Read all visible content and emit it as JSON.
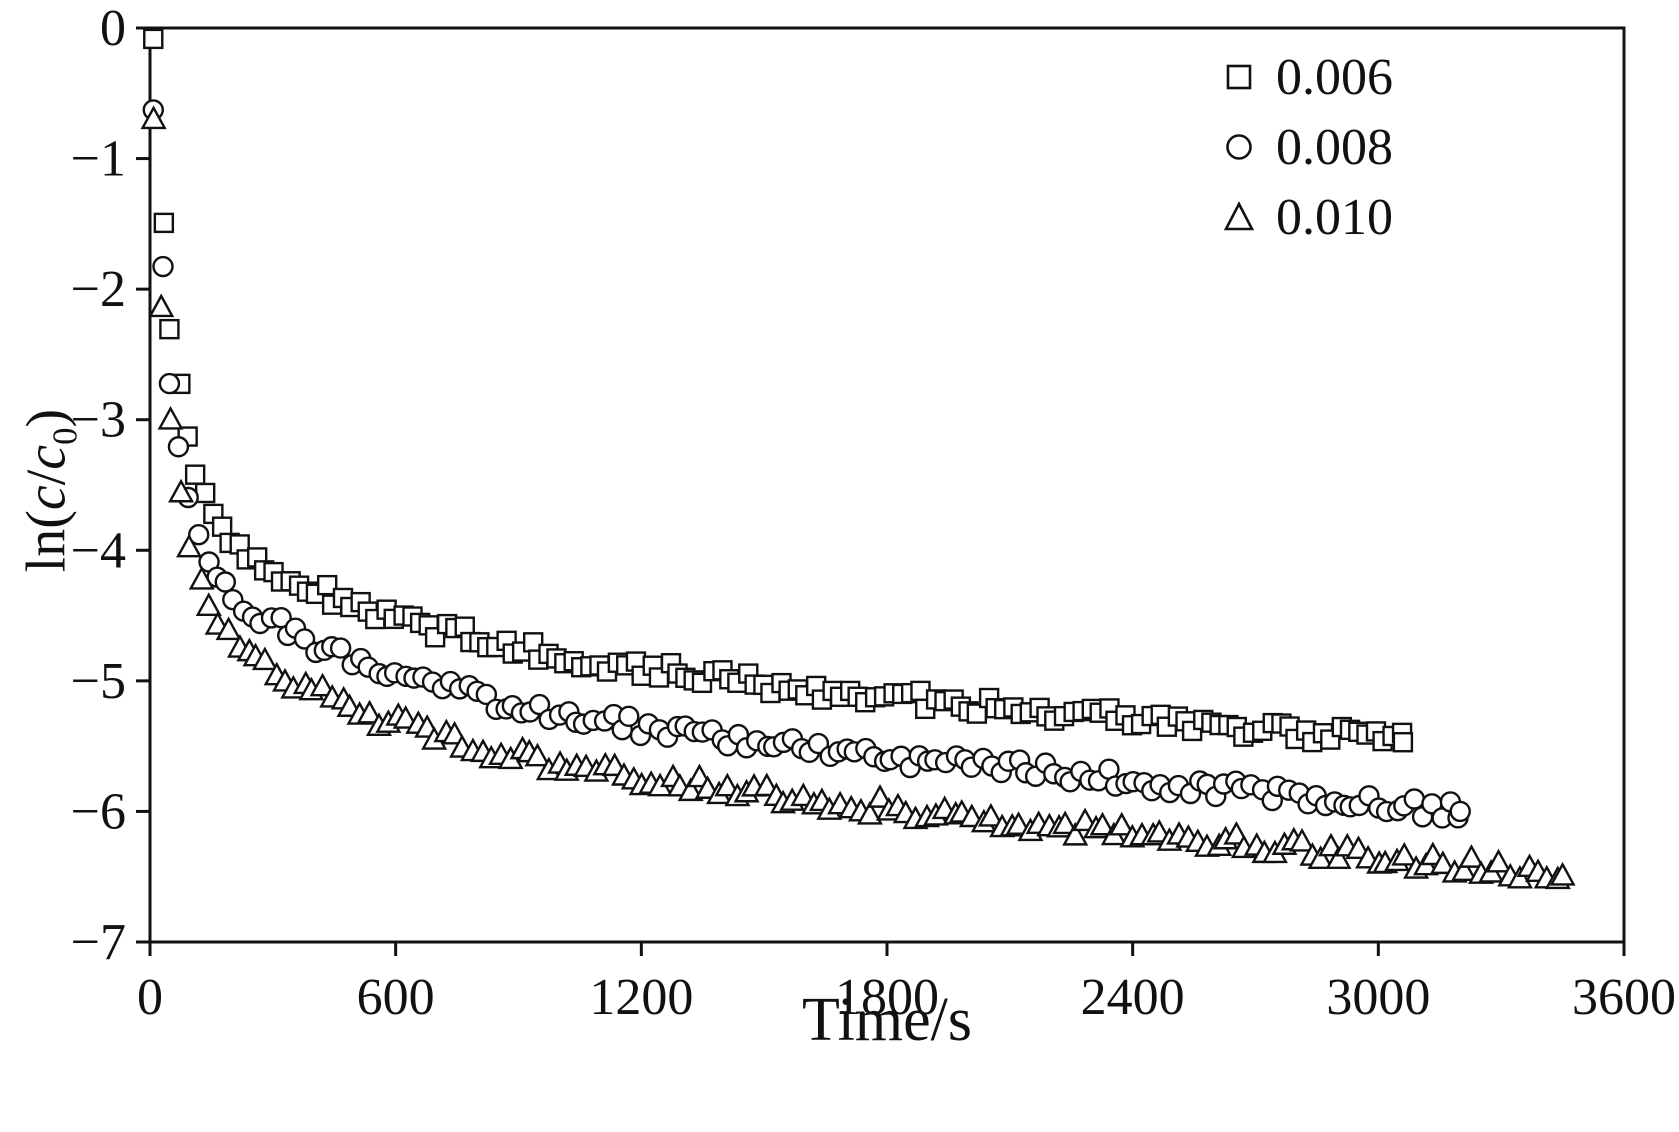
{
  "figure": {
    "description": "Scatter plot of ln(c/c0) versus time for three concentrations"
  },
  "axis": {
    "xlabel": "Time/s",
    "ylabel": "ln(c/c0)",
    "ylabel_parts": {
      "open": "ln(",
      "c1": "c",
      "slash": "/",
      "c2": "c",
      "sub": "0",
      "close": ")"
    }
  },
  "legend": {
    "items": [
      {
        "marker": "square",
        "label": "0.006"
      },
      {
        "marker": "circle",
        "label": "0.008"
      },
      {
        "marker": "triangle",
        "label": "0.010"
      }
    ]
  },
  "chart_data": {
    "type": "scatter",
    "title": "",
    "xlabel": "Time/s",
    "ylabel": "ln(c/c0)",
    "xlim": [
      0,
      3600
    ],
    "ylim": [
      -7,
      0
    ],
    "xticks": [
      0,
      600,
      1200,
      1800,
      2400,
      3000,
      3600
    ],
    "xtick_labels": [
      "0",
      "600",
      "1200",
      "1800",
      "2400",
      "3000",
      "3600"
    ],
    "yticks": [
      0,
      -1,
      -2,
      -3,
      -4,
      -5,
      -6,
      -7
    ],
    "ytick_labels": [
      "0",
      "−1",
      "−2",
      "−3",
      "−4",
      "−5",
      "−6",
      "−7"
    ],
    "grid": false,
    "legend_position": "top-right",
    "marker_style": "hollow",
    "color": "#111111",
    "series": [
      {
        "name": "0.006",
        "marker": "square",
        "marker_step": 21,
        "points": [
          [
            8,
            -0.05
          ],
          [
            12,
            -0.3
          ],
          [
            16,
            -0.7
          ],
          [
            20,
            -1.15
          ],
          [
            25,
            -1.4
          ],
          [
            30,
            -1.6
          ],
          [
            40,
            -1.95
          ],
          [
            50,
            -2.27
          ],
          [
            60,
            -2.53
          ],
          [
            70,
            -2.75
          ],
          [
            80,
            -2.94
          ],
          [
            90,
            -3.1
          ],
          [
            100,
            -3.24
          ],
          [
            120,
            -3.46
          ],
          [
            140,
            -3.62
          ],
          [
            160,
            -3.75
          ],
          [
            180,
            -3.84
          ],
          [
            200,
            -3.92
          ],
          [
            250,
            -4.06
          ],
          [
            300,
            -4.16
          ],
          [
            350,
            -4.24
          ],
          [
            400,
            -4.3
          ],
          [
            450,
            -4.36
          ],
          [
            500,
            -4.42
          ],
          [
            550,
            -4.47
          ],
          [
            600,
            -4.52
          ],
          [
            700,
            -4.6
          ],
          [
            800,
            -4.68
          ],
          [
            900,
            -4.74
          ],
          [
            1000,
            -4.8
          ],
          [
            1100,
            -4.85
          ],
          [
            1200,
            -4.9
          ],
          [
            1300,
            -4.94
          ],
          [
            1400,
            -4.98
          ],
          [
            1500,
            -5.02
          ],
          [
            1600,
            -5.06
          ],
          [
            1700,
            -5.09
          ],
          [
            1800,
            -5.12
          ],
          [
            1900,
            -5.15
          ],
          [
            2000,
            -5.18
          ],
          [
            2100,
            -5.21
          ],
          [
            2200,
            -5.24
          ],
          [
            2300,
            -5.26
          ],
          [
            2400,
            -5.29
          ],
          [
            2500,
            -5.32
          ],
          [
            2600,
            -5.34
          ],
          [
            2700,
            -5.37
          ],
          [
            2800,
            -5.4
          ],
          [
            2900,
            -5.42
          ],
          [
            3000,
            -5.45
          ],
          [
            3060,
            -5.47
          ]
        ]
      },
      {
        "name": "0.008",
        "marker": "circle",
        "marker_step": 22,
        "points": [
          [
            8,
            -0.6
          ],
          [
            12,
            -0.85
          ],
          [
            16,
            -1.1
          ],
          [
            20,
            -1.34
          ],
          [
            25,
            -1.6
          ],
          [
            30,
            -1.85
          ],
          [
            40,
            -2.26
          ],
          [
            50,
            -2.6
          ],
          [
            60,
            -2.89
          ],
          [
            70,
            -3.13
          ],
          [
            80,
            -3.33
          ],
          [
            90,
            -3.5
          ],
          [
            100,
            -3.64
          ],
          [
            120,
            -3.86
          ],
          [
            140,
            -4.02
          ],
          [
            160,
            -4.15
          ],
          [
            180,
            -4.24
          ],
          [
            200,
            -4.32
          ],
          [
            250,
            -4.46
          ],
          [
            300,
            -4.56
          ],
          [
            350,
            -4.64
          ],
          [
            400,
            -4.72
          ],
          [
            450,
            -4.79
          ],
          [
            500,
            -4.85
          ],
          [
            550,
            -4.9
          ],
          [
            600,
            -4.95
          ],
          [
            700,
            -5.04
          ],
          [
            800,
            -5.12
          ],
          [
            900,
            -5.19
          ],
          [
            1000,
            -5.25
          ],
          [
            1100,
            -5.3
          ],
          [
            1200,
            -5.35
          ],
          [
            1300,
            -5.39
          ],
          [
            1400,
            -5.43
          ],
          [
            1500,
            -5.47
          ],
          [
            1600,
            -5.51
          ],
          [
            1700,
            -5.55
          ],
          [
            1800,
            -5.58
          ],
          [
            1900,
            -5.61
          ],
          [
            2000,
            -5.64
          ],
          [
            2100,
            -5.67
          ],
          [
            2200,
            -5.7
          ],
          [
            2300,
            -5.73
          ],
          [
            2400,
            -5.76
          ],
          [
            2500,
            -5.79
          ],
          [
            2600,
            -5.82
          ],
          [
            2700,
            -5.85
          ],
          [
            2800,
            -5.88
          ],
          [
            2900,
            -5.91
          ],
          [
            3000,
            -5.94
          ],
          [
            3100,
            -5.97
          ],
          [
            3200,
            -6.0
          ]
        ]
      },
      {
        "name": "0.010",
        "marker": "triangle",
        "marker_step": 23,
        "points": [
          [
            8,
            -0.7
          ],
          [
            12,
            -0.95
          ],
          [
            16,
            -1.2
          ],
          [
            20,
            -1.49
          ],
          [
            25,
            -1.78
          ],
          [
            30,
            -2.04
          ],
          [
            40,
            -2.5
          ],
          [
            50,
            -2.87
          ],
          [
            60,
            -3.18
          ],
          [
            70,
            -3.43
          ],
          [
            80,
            -3.64
          ],
          [
            90,
            -3.82
          ],
          [
            100,
            -3.97
          ],
          [
            120,
            -4.2
          ],
          [
            140,
            -4.36
          ],
          [
            160,
            -4.49
          ],
          [
            180,
            -4.58
          ],
          [
            200,
            -4.66
          ],
          [
            250,
            -4.81
          ],
          [
            300,
            -4.92
          ],
          [
            350,
            -5.01
          ],
          [
            400,
            -5.08
          ],
          [
            450,
            -5.15
          ],
          [
            500,
            -5.21
          ],
          [
            550,
            -5.27
          ],
          [
            600,
            -5.32
          ],
          [
            700,
            -5.41
          ],
          [
            800,
            -5.5
          ],
          [
            900,
            -5.57
          ],
          [
            1000,
            -5.63
          ],
          [
            1100,
            -5.68
          ],
          [
            1200,
            -5.73
          ],
          [
            1300,
            -5.78
          ],
          [
            1400,
            -5.82
          ],
          [
            1500,
            -5.86
          ],
          [
            1600,
            -5.9
          ],
          [
            1700,
            -5.94
          ],
          [
            1800,
            -5.97
          ],
          [
            1900,
            -6.01
          ],
          [
            2000,
            -6.04
          ],
          [
            2100,
            -6.07
          ],
          [
            2200,
            -6.1
          ],
          [
            2300,
            -6.14
          ],
          [
            2400,
            -6.17
          ],
          [
            2500,
            -6.2
          ],
          [
            2600,
            -6.23
          ],
          [
            2700,
            -6.26
          ],
          [
            2800,
            -6.29
          ],
          [
            2900,
            -6.32
          ],
          [
            3000,
            -6.35
          ],
          [
            3100,
            -6.38
          ],
          [
            3200,
            -6.41
          ],
          [
            3300,
            -6.44
          ],
          [
            3450,
            -6.49
          ]
        ]
      }
    ]
  }
}
